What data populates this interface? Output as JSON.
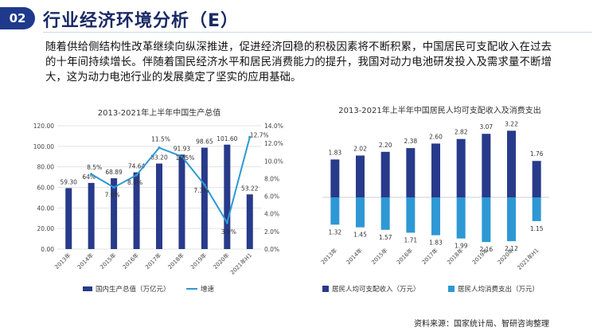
{
  "header": {
    "section_number": "02",
    "title": "行业经济环境分析（E）"
  },
  "intro_text": "随着供给侧结构性改革继续向纵深推进，促进经济回稳的积极因素将不断积累，中国居民可支配收入在过去的十年间持续增长。伴随着国民经济水平和居民消费能力的提升，我国对动力电池研发投入及需求量不断增大，这为动力电池行业的发展奠定了坚实的应用基础。",
  "source": "资料来源：国家统计局、智研咨询整理",
  "colors": {
    "bar_dark": "#283a8a",
    "bar_light": "#2e98d4",
    "line": "#2e98d4",
    "title_blue": "#1f3a8c"
  },
  "chart_data": [
    {
      "type": "bar",
      "title": "2013-2021年上半年中国生产总值",
      "categories": [
        "2013年",
        "2014年",
        "2015年",
        "2016年",
        "2017年",
        "2018年",
        "2019年",
        "2020年",
        "2021年H1"
      ],
      "series": [
        {
          "name": "国内生产总值（万亿元）",
          "axis": "left",
          "values": [
            59.3,
            64.36,
            68.89,
            74.64,
            83.2,
            91.93,
            98.65,
            101.6,
            53.22
          ],
          "labels": [
            "59.30",
            "",
            "68.89",
            "74.64",
            "83.20",
            "91.93",
            "98.65",
            "101.60",
            "53.22"
          ]
        },
        {
          "name": "增速",
          "axis": "right",
          "type": "line",
          "values": [
            null,
            8.5,
            7.0,
            8.4,
            11.5,
            10.5,
            7.3,
            3.0,
            12.7
          ],
          "labels": [
            "",
            "8.5%",
            "7.0%",
            "8.4%",
            "11.5%",
            "10.5%",
            "7.3%",
            "3.0%",
            "12.7%"
          ]
        }
      ],
      "extra_labels": [
        {
          "text": "64%",
          "category_index": 1
        }
      ],
      "y_left": {
        "min": 0,
        "max": 120,
        "ticks": [
          "0.00",
          "20.00",
          "40.00",
          "60.00",
          "80.00",
          "100.00",
          "120.00"
        ]
      },
      "y_right": {
        "min": 0,
        "max": 14,
        "ticks": [
          "0.0%",
          "2.0%",
          "4.0%",
          "6.0%",
          "8.0%",
          "10.0%",
          "12.0%",
          "14.0%"
        ]
      },
      "legend": [
        "国内生产总值（万亿元）",
        "增速"
      ],
      "grid": true
    },
    {
      "type": "bar",
      "title": "2013-2021年上半年中国居民人均可支配收入及消费支出",
      "categories": [
        "2013年",
        "2014年",
        "2015年",
        "2016年",
        "2017年",
        "2018年",
        "2019年",
        "2020年",
        "2021年H1"
      ],
      "series": [
        {
          "name": "居民人均可支配收入（万元）",
          "values": [
            1.83,
            2.02,
            2.2,
            2.38,
            2.6,
            2.82,
            3.07,
            3.22,
            1.76
          ],
          "labels": [
            "1.83",
            "2.02",
            "2.20",
            "2.38",
            "2.60",
            "2.82",
            "3.07",
            "3.22",
            "1.76"
          ]
        },
        {
          "name": "居民人均消费支出（万元）",
          "values": [
            1.32,
            1.45,
            1.57,
            1.71,
            1.83,
            1.99,
            2.16,
            2.12,
            1.15
          ],
          "labels": [
            "1.32",
            "1.45",
            "1.57",
            "1.71",
            "1.83",
            "1.99",
            "2.16",
            "2.12",
            "1.15"
          ]
        }
      ],
      "legend": [
        "居民人均可支配收入（万元）",
        "居民人均消费支出（万元）"
      ],
      "grid": false
    }
  ]
}
